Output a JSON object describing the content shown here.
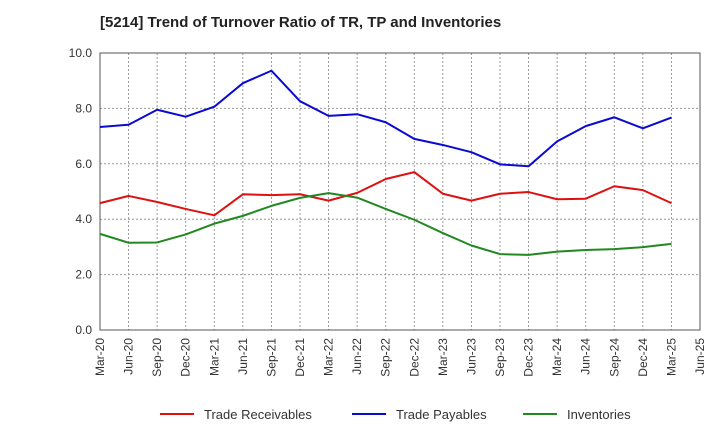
{
  "chart_data": {
    "type": "line",
    "title": "[5214]  Trend of Turnover Ratio of TR, TP and Inventories",
    "xlabel": "",
    "ylabel": "",
    "ylim": [
      0,
      10
    ],
    "yticks": [
      "0.0",
      "2.0",
      "4.0",
      "6.0",
      "8.0",
      "10.0"
    ],
    "grid": true,
    "legend_position": "bottom",
    "x": [
      "Mar-20",
      "Jun-20",
      "Sep-20",
      "Dec-20",
      "Mar-21",
      "Jun-21",
      "Sep-21",
      "Dec-21",
      "Mar-22",
      "Jun-22",
      "Sep-22",
      "Dec-22",
      "Mar-23",
      "Jun-23",
      "Sep-23",
      "Dec-23",
      "Mar-24",
      "Jun-24",
      "Sep-24",
      "Dec-24",
      "Mar-25",
      "Jun-25"
    ],
    "series": [
      {
        "name": "Trade Receivables",
        "color": "#dd1111",
        "values": [
          4.58,
          4.84,
          4.62,
          4.37,
          4.14,
          4.9,
          4.87,
          4.9,
          4.67,
          4.95,
          5.45,
          5.7,
          4.92,
          4.67,
          4.92,
          4.98,
          4.72,
          4.74,
          5.19,
          5.05,
          4.58,
          null
        ]
      },
      {
        "name": "Trade Payables",
        "color": "#0a0ad2",
        "values": [
          7.33,
          7.41,
          7.95,
          7.7,
          8.06,
          8.91,
          9.36,
          8.26,
          7.73,
          7.79,
          7.5,
          6.9,
          6.68,
          6.42,
          5.98,
          5.91,
          6.81,
          7.36,
          7.68,
          7.28,
          7.67,
          null
        ]
      },
      {
        "name": "Inventories",
        "color": "#228822",
        "values": [
          3.47,
          3.15,
          3.16,
          3.45,
          3.84,
          4.12,
          4.48,
          4.77,
          4.94,
          4.78,
          4.37,
          3.98,
          3.5,
          3.05,
          2.74,
          2.71,
          2.83,
          2.89,
          2.92,
          2.99,
          3.11,
          null
        ]
      }
    ]
  }
}
